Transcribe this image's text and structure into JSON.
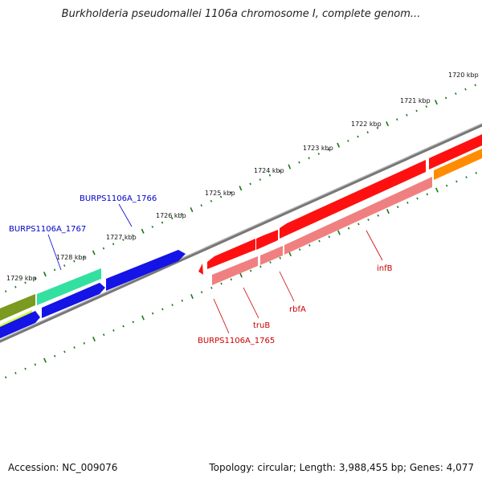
{
  "title": "Burkholderia pseudomallei 1106a chromosome I, complete genom...",
  "footer": {
    "accession": "Accession: NC_009076",
    "stats": "Topology: circular; Length: 3,988,455 bp; Genes: 4,077"
  },
  "scale_labels": [
    "1720 kbp",
    "1721 kbp",
    "1722 kbp",
    "1723 kbp",
    "1724 kbp",
    "1725 kbp",
    "1726 kbp",
    "1727 kbp",
    "1728 kbp",
    "1729 kbp"
  ],
  "gene_labels": {
    "burps1766": "BURPS1106A_1766",
    "burps1767": "BURPS1106A_1767",
    "infB": "infB",
    "rbfA": "rbfA",
    "truB": "truB",
    "burps1765": "BURPS1106A_1765"
  },
  "colors": {
    "forward_red": "#ff1010",
    "reverse_pink": "#f08080",
    "blue": "#1414e6",
    "teal": "#33e0a0",
    "olive": "#7a9a20",
    "lime": "#ccff33",
    "orange": "#ff8c00",
    "backbone": "#888888",
    "ticks": "#1a7a1a",
    "blue_label": "#0000cc",
    "red_label": "#cc0000"
  }
}
